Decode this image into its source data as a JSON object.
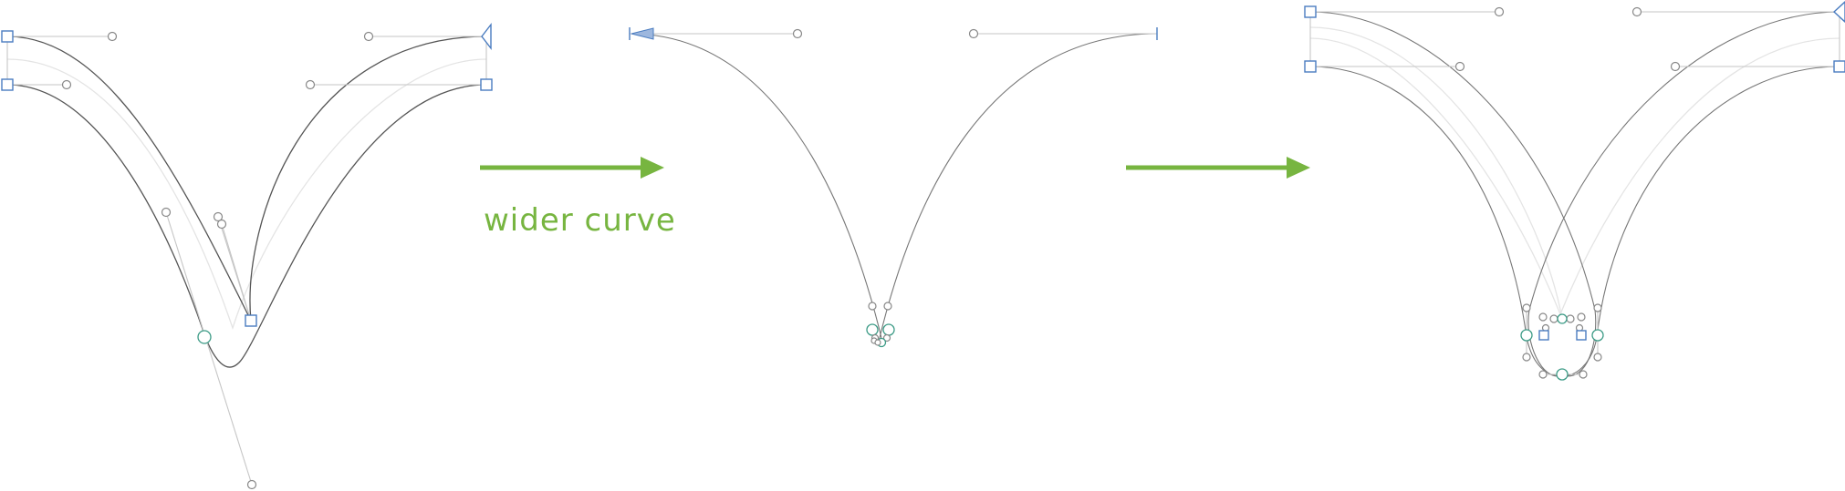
{
  "caption": "wider curve",
  "colors": {
    "arrow": "#77b540",
    "anchor_node": "#4a7cc0",
    "tangent_node": "#3c9b86",
    "outline": "#555555",
    "handle": "#c6c6c6"
  }
}
